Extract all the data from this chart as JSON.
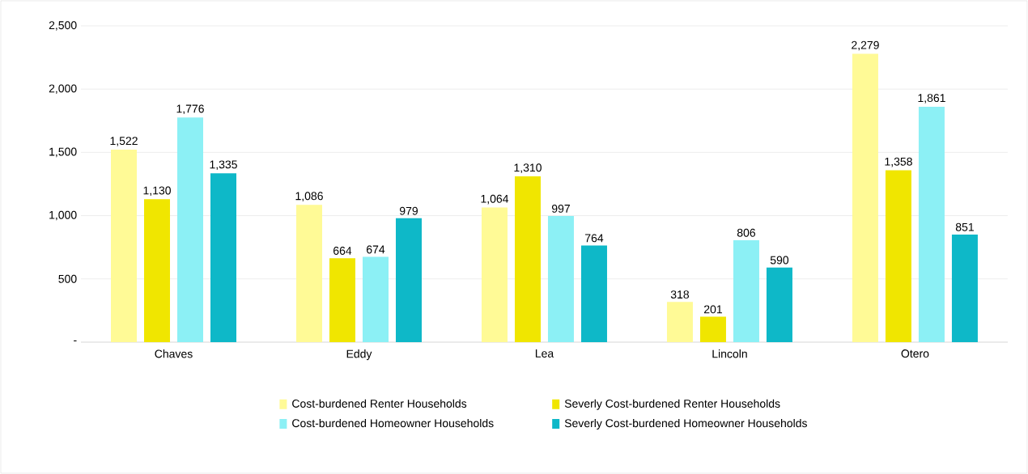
{
  "chart_data": {
    "type": "bar",
    "categories": [
      "Chaves",
      "Eddy",
      "Lea",
      "Lincoln",
      "Otero"
    ],
    "series": [
      {
        "name": "Cost-burdened Renter Households",
        "color": "#fffa96",
        "values": [
          1522,
          1086,
          1064,
          318,
          2279
        ],
        "value_labels": [
          "1,522",
          "1,086",
          "1,064",
          "318",
          "2,279"
        ]
      },
      {
        "name": "Severly Cost-burdened Renter Households",
        "color": "#f0e600",
        "values": [
          1130,
          664,
          1310,
          201,
          1358
        ],
        "value_labels": [
          "1,130",
          "664",
          "1,310",
          "201",
          "1,358"
        ]
      },
      {
        "name": "Cost-burdened Homeowner Households",
        "color": "#8cf0f5",
        "values": [
          1776,
          674,
          997,
          806,
          1861
        ],
        "value_labels": [
          "1,776",
          "674",
          "997",
          "806",
          "1,861"
        ]
      },
      {
        "name": "Severly Cost-burdened Homeowner Households",
        "color": "#0eb8c8",
        "values": [
          1335,
          979,
          764,
          590,
          851
        ],
        "value_labels": [
          "1,335",
          "979",
          "764",
          "590",
          "851"
        ]
      }
    ],
    "ylim": [
      0,
      2500
    ],
    "yticks": [
      {
        "value": 0,
        "label": "-"
      },
      {
        "value": 500,
        "label": "500"
      },
      {
        "value": 1000,
        "label": "1,000"
      },
      {
        "value": 1500,
        "label": "1,500"
      },
      {
        "value": 2000,
        "label": "2,000"
      },
      {
        "value": 2500,
        "label": "2,500"
      }
    ],
    "grid": "y",
    "legend": "bottom"
  }
}
